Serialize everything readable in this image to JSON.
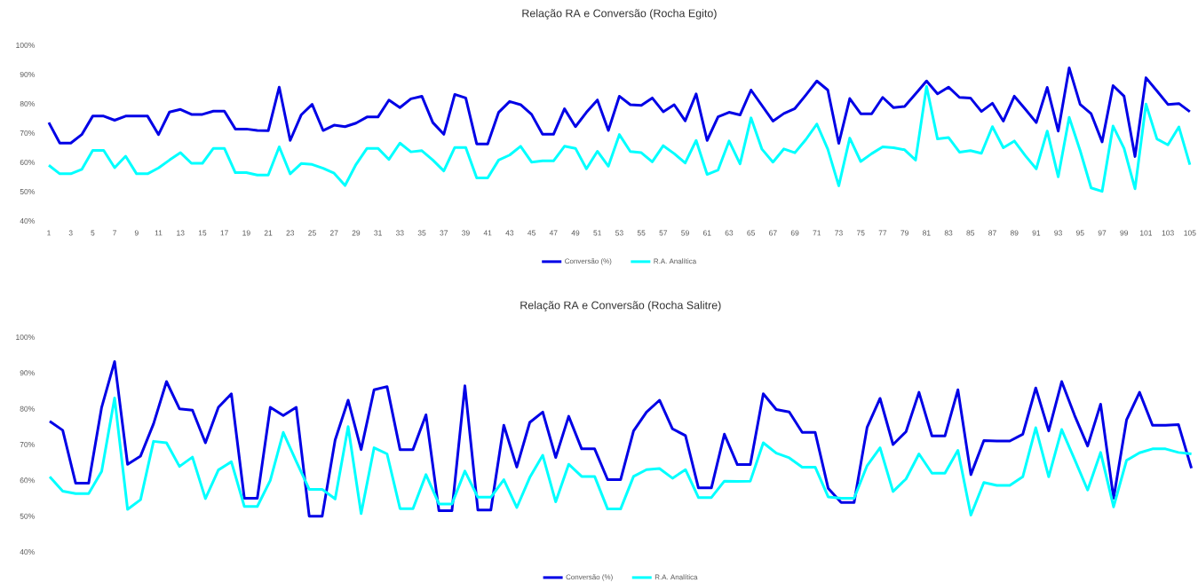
{
  "chart_data": [
    {
      "type": "line",
      "title": "Relação RA e Conversão (Rocha Egito)",
      "legend": "bottom",
      "categories": [
        "1",
        null,
        "3",
        null,
        "5",
        null,
        "7",
        null,
        "9",
        null,
        "11",
        null,
        "13",
        null,
        "15",
        null,
        "17",
        null,
        "19",
        null,
        "21",
        null,
        "23",
        null,
        "25",
        null,
        "27",
        null,
        "29",
        null,
        "31",
        null,
        "33",
        null,
        "35",
        null,
        "37",
        null,
        "39",
        null,
        "41",
        null,
        "43",
        null,
        "45",
        null,
        "47",
        null,
        "49",
        null,
        "51",
        null,
        "53",
        null,
        "55",
        null,
        "57",
        null,
        "59",
        null,
        "61",
        null,
        "63",
        null,
        "65",
        null,
        "67",
        null,
        "69",
        null,
        "71",
        null,
        "73",
        null,
        "75",
        null,
        "77",
        null,
        "79",
        null,
        "81",
        null,
        "83",
        null,
        "85",
        null,
        "87",
        null,
        "89",
        null,
        "91",
        null,
        "93",
        null,
        "95",
        null,
        "97",
        null,
        "99",
        null,
        "101",
        null,
        "103",
        null,
        "105"
      ],
      "ylim": [
        40,
        100
      ],
      "yticks": [
        {
          "value": 40,
          "label": "40%"
        },
        {
          "value": 50,
          "label": "50%"
        },
        {
          "value": 60,
          "label": "60%"
        },
        {
          "value": 70,
          "label": "70%"
        },
        {
          "value": 80,
          "label": "80%"
        },
        {
          "value": 90,
          "label": "90%"
        },
        {
          "value": 100,
          "label": "100%"
        }
      ],
      "series": [
        {
          "name": "Conversão (%)",
          "color": "#0000e6",
          "values": [
            73.6,
            66.6,
            66.6,
            69.5,
            75.8,
            75.8,
            74.4,
            75.8,
            75.8,
            75.8,
            69.5,
            77.2,
            78.1,
            76.4,
            76.4,
            77.5,
            77.5,
            71.4,
            71.4,
            70.9,
            70.8,
            85.7,
            67.5,
            76.2,
            79.8,
            70.9,
            72.7,
            72.2,
            73.4,
            75.5,
            75.5,
            81.3,
            78.7,
            81.7,
            82.6,
            73.6,
            69.6,
            83.2,
            82.0,
            66.3,
            66.3,
            77.1,
            80.8,
            79.7,
            76.4,
            69.6,
            69.6,
            78.3,
            72.2,
            77.1,
            81.3,
            70.9,
            82.6,
            79.7,
            79.5,
            82.0,
            77.3,
            79.7,
            74.2,
            83.4,
            67.5,
            75.6,
            77.1,
            76.2,
            84.7,
            79.4,
            74.1,
            76.7,
            78.4,
            83.0,
            87.8,
            84.7,
            66.5,
            81.8,
            76.6,
            76.6,
            82.2,
            78.7,
            79.1,
            83.4,
            87.8,
            83.4,
            85.7,
            82.2,
            82.0,
            77.4,
            80.2,
            74.1,
            82.6,
            78.2,
            73.6,
            85.6,
            70.7,
            92.3,
            79.8,
            76.6,
            67.0,
            86.2,
            82.6,
            62.0,
            88.9,
            84.4,
            79.8,
            80.1,
            77.3
          ]
        },
        {
          "name": "R.A. Analítica",
          "color": "#00ffff",
          "values": [
            59.0,
            56.1,
            56.1,
            57.6,
            64.1,
            64.1,
            58.2,
            62.1,
            56.1,
            56.1,
            58.1,
            60.8,
            63.3,
            59.7,
            59.7,
            64.8,
            64.8,
            56.5,
            56.5,
            55.7,
            55.7,
            65.3,
            56.1,
            59.6,
            59.3,
            58.0,
            56.3,
            52.1,
            59.3,
            64.8,
            64.8,
            61.0,
            66.6,
            63.6,
            64.0,
            60.8,
            57.1,
            65.1,
            65.1,
            54.7,
            54.7,
            60.8,
            62.5,
            65.5,
            60.1,
            60.5,
            60.5,
            65.5,
            64.8,
            57.8,
            63.8,
            58.7,
            69.5,
            63.7,
            63.3,
            60.2,
            65.7,
            63.0,
            59.8,
            67.5,
            55.9,
            57.4,
            67.3,
            59.5,
            75.2,
            64.5,
            60.1,
            64.6,
            63.3,
            67.8,
            73.1,
            64.5,
            52.0,
            68.3,
            60.3,
            63.0,
            65.3,
            65.0,
            64.3,
            60.8,
            85.9,
            68.0,
            68.5,
            63.5,
            64.0,
            63.1,
            72.2,
            65.0,
            67.3,
            62.3,
            57.8,
            70.7,
            55.1,
            75.4,
            64.0,
            51.3,
            50.1,
            72.4,
            64.8,
            51.0,
            79.9,
            68.0,
            66.0,
            72.1,
            59.2
          ]
        }
      ]
    },
    {
      "type": "line",
      "title": "Relação RA e Conversão (Rocha Salitre)",
      "legend": "bottom",
      "tick_labels": "y",
      "categories": [
        null,
        null,
        null,
        null,
        null,
        null,
        null,
        null,
        null,
        null,
        null,
        null,
        null,
        null,
        null,
        null,
        null,
        null,
        null,
        null,
        null,
        null,
        null,
        null,
        null,
        null,
        null,
        null,
        null,
        null,
        null,
        null,
        null,
        null,
        null,
        null,
        null,
        null,
        null,
        null,
        null,
        null,
        null,
        null,
        null,
        null,
        null,
        null,
        null,
        null,
        null,
        null,
        null,
        null,
        null,
        null,
        null,
        null,
        null,
        null,
        null,
        null,
        null,
        null,
        null,
        null,
        null,
        null,
        null,
        null,
        null,
        null,
        null,
        null,
        null,
        null,
        null,
        null,
        null,
        null,
        null,
        null,
        null,
        null,
        null,
        null,
        null,
        null,
        null
      ],
      "ylim": [
        40,
        100
      ],
      "yticks": [
        {
          "value": 40,
          "label": "40%"
        },
        {
          "value": 50,
          "label": "50%"
        },
        {
          "value": 60,
          "label": "60%"
        },
        {
          "value": 70,
          "label": "70%"
        },
        {
          "value": 80,
          "label": "80%"
        },
        {
          "value": 90,
          "label": "90%"
        },
        {
          "value": 100,
          "label": "100%"
        }
      ],
      "series": [
        {
          "name": "Conversão (%)",
          "color": "#0000e6",
          "values": [
            76.5,
            74.0,
            59.2,
            59.2,
            80.4,
            93.2,
            64.5,
            66.8,
            75.8,
            87.6,
            80.0,
            79.6,
            70.5,
            80.4,
            84.2,
            55.0,
            55.0,
            80.4,
            78.1,
            80.4,
            50.0,
            50.0,
            71.3,
            82.4,
            68.6,
            85.3,
            86.2,
            68.6,
            68.6,
            78.3,
            51.5,
            51.5,
            86.4,
            51.7,
            51.7,
            75.4,
            63.7,
            76.2,
            79.1,
            66.4,
            77.9,
            68.8,
            68.8,
            60.2,
            60.2,
            73.8,
            79.1,
            82.4,
            74.4,
            72.5,
            57.9,
            57.9,
            72.9,
            64.4,
            64.4,
            84.2,
            79.8,
            79.1,
            73.4,
            73.4,
            57.8,
            53.8,
            53.8,
            74.8,
            82.9,
            70.0,
            73.6,
            84.6,
            72.4,
            72.4,
            85.3,
            61.6,
            71.1,
            71.0,
            71.0,
            72.9,
            85.8,
            73.8,
            87.6,
            78.1,
            69.6,
            81.3,
            55.0,
            76.9,
            84.6,
            75.4,
            75.4,
            75.6,
            63.4
          ]
        },
        {
          "name": "R.A. Analítica",
          "color": "#00ffff",
          "values": [
            61.0,
            57.0,
            56.3,
            56.3,
            62.5,
            83.0,
            51.9,
            54.6,
            70.9,
            70.5,
            63.9,
            66.5,
            54.9,
            62.9,
            65.2,
            52.7,
            52.7,
            60.0,
            73.4,
            65.3,
            57.5,
            57.5,
            54.8,
            75.0,
            50.7,
            69.1,
            67.4,
            52.1,
            52.1,
            61.6,
            53.4,
            53.4,
            62.6,
            55.3,
            55.3,
            60.2,
            52.4,
            60.8,
            67.0,
            54.0,
            64.5,
            61.1,
            61.1,
            52.0,
            52.0,
            61.1,
            63.0,
            63.3,
            60.6,
            63.0,
            55.2,
            55.2,
            59.8,
            59.7,
            59.8,
            70.5,
            67.6,
            66.3,
            63.7,
            63.7,
            55.4,
            55.0,
            55.0,
            64.1,
            69.1,
            56.9,
            60.4,
            67.4,
            62.0,
            62.0,
            68.4,
            50.3,
            59.4,
            58.6,
            58.6,
            61.0,
            74.7,
            61.0,
            74.2,
            65.8,
            57.3,
            67.8,
            52.6,
            65.6,
            67.7,
            68.8,
            68.8,
            67.8,
            67.4
          ]
        }
      ]
    }
  ]
}
